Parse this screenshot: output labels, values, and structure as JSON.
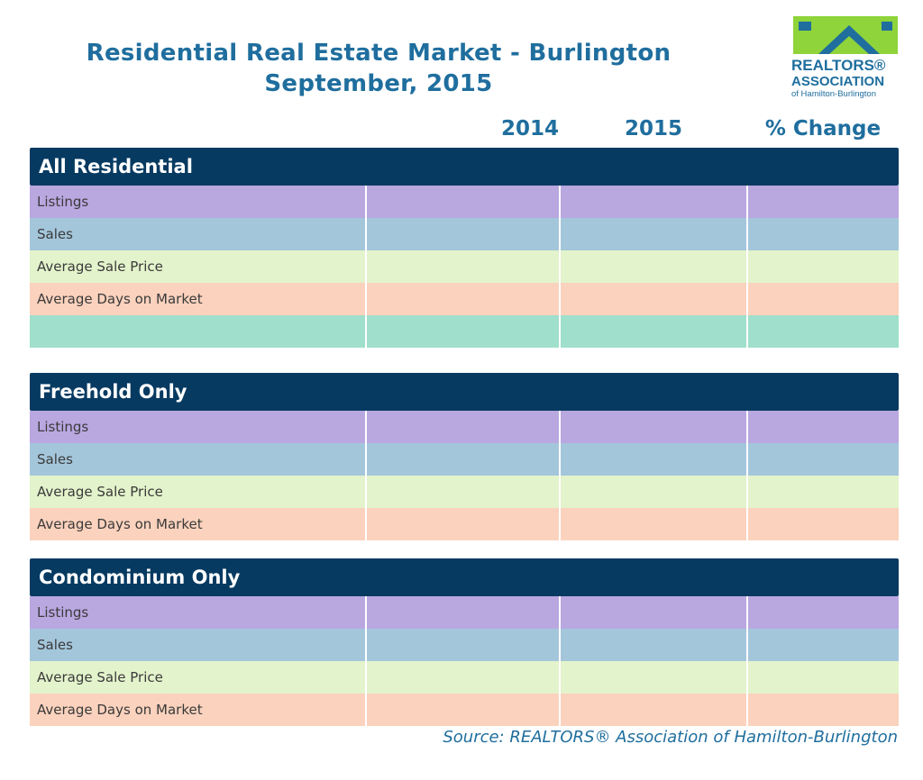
{
  "title_line1": "Residential Real Estate Market - Burlington",
  "title_line2": "September, 2015",
  "logo": {
    "line1": "REALTORS®",
    "line2": "ASSOCIATION",
    "line3": "of Hamilton-Burlington",
    "colors": {
      "green": "#8ed43a",
      "blue": "#1f6e9e"
    }
  },
  "columns": {
    "year1": "2014",
    "year2": "2015",
    "change": "% Change"
  },
  "sections": [
    {
      "heading": "All Residential",
      "rows": [
        {
          "label": "Listings",
          "v2014": "",
          "v2015": "",
          "pct": ""
        },
        {
          "label": "Sales",
          "v2014": "",
          "v2015": "",
          "pct": ""
        },
        {
          "label": "Average Sale Price",
          "v2014": "",
          "v2015": "",
          "pct": ""
        },
        {
          "label": "Average Days on Market",
          "v2014": "",
          "v2015": "",
          "pct": ""
        },
        {
          "label": "",
          "v2014": "",
          "v2015": "",
          "pct": ""
        }
      ]
    },
    {
      "heading": "Freehold Only",
      "rows": [
        {
          "label": "Listings",
          "v2014": "",
          "v2015": "",
          "pct": ""
        },
        {
          "label": "Sales",
          "v2014": "",
          "v2015": "",
          "pct": ""
        },
        {
          "label": "Average Sale Price",
          "v2014": "",
          "v2015": "",
          "pct": ""
        },
        {
          "label": "Average Days on Market",
          "v2014": "",
          "v2015": "",
          "pct": ""
        }
      ]
    },
    {
      "heading": "Condominium Only",
      "rows": [
        {
          "label": "Listings",
          "v2014": "",
          "v2015": "",
          "pct": ""
        },
        {
          "label": "Sales",
          "v2014": "",
          "v2015": "",
          "pct": ""
        },
        {
          "label": "Average Sale Price",
          "v2014": "",
          "v2015": "",
          "pct": ""
        },
        {
          "label": "Average Days on Market",
          "v2014": "",
          "v2015": "",
          "pct": ""
        }
      ]
    }
  ],
  "source": "Source:  REALTORS® Association of Hamilton-Burlington",
  "colors": {
    "header_bg": "#063a61",
    "title": "#1f6e9e",
    "listings": "#b9a7e0",
    "sales": "#a4c6db",
    "price": "#e3f3cb",
    "days": "#fbd2bd",
    "month": "#9fdfcb"
  }
}
